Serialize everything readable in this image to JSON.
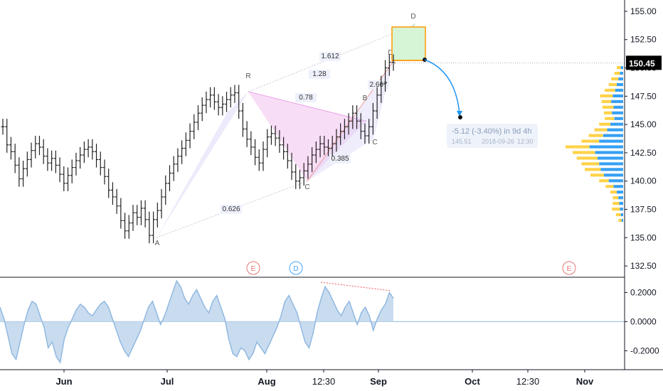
{
  "colors": {
    "up": "#26a69a",
    "bar": "#222222",
    "harmonic_fill": "#f3c6f0",
    "harmonic_line": "#e6a0e6",
    "xabcd_fill": "#dcd6f7",
    "projection_box": "#ff9800",
    "projection_fill": "#d6f5d6",
    "forecast_arrow": "#2196f3",
    "volume_buy": "#2196f3",
    "volume_sell": "#ffca28",
    "oscillator": "#90b8e0",
    "divergence": "#ef5350",
    "last_price_bg": "#000000"
  },
  "chart_data": [
    {
      "type": "ohlc",
      "x_ticks": [
        "Jun",
        "Jul",
        "Aug",
        "12:30",
        "Sep",
        "Oct",
        "12:30",
        "Nov"
      ],
      "y_ticks": [
        "155.00",
        "152.50",
        "150.00",
        "147.50",
        "145.00",
        "142.50",
        "140.00",
        "137.50",
        "135.00",
        "132.50"
      ],
      "ylim": [
        131.5,
        156
      ],
      "last_price": "150.45",
      "close_series": [
        144.8,
        143.2,
        142.6,
        141.4,
        140.2,
        141.1,
        141.9,
        142.7,
        143.3,
        143.0,
        142.2,
        141.6,
        142.0,
        141.4,
        140.6,
        139.8,
        140.5,
        141.2,
        141.8,
        142.3,
        142.8,
        143.0,
        142.6,
        141.9,
        141.2,
        140.4,
        139.2,
        138.6,
        137.8,
        136.5,
        135.6,
        136.3,
        137.2,
        136.8,
        137.6,
        136.6,
        135.2,
        136.6,
        137.4,
        138.6,
        139.8,
        140.7,
        141.5,
        142.2,
        142.9,
        143.6,
        144.4,
        145.2,
        146.0,
        146.7,
        147.2,
        147.6,
        147.0,
        146.5,
        146.8,
        147.2,
        147.6,
        147.8,
        146.2,
        144.6,
        143.7,
        143.0,
        142.1,
        141.6,
        142.8,
        143.9,
        144.2,
        143.8,
        143.2,
        142.6,
        141.8,
        140.8,
        140.0,
        140.3,
        140.9,
        141.5,
        142.3,
        142.8,
        143.3,
        143.0,
        142.9,
        143.3,
        143.9,
        144.4,
        144.8,
        145.3,
        146.0,
        145.3,
        144.4,
        144.0,
        144.8,
        146.2,
        147.6,
        148.6,
        150.0,
        150.5,
        150.45
      ],
      "volume_profile_levels": [
        {
          "price": 150.0,
          "buy": 3,
          "sell": 5
        },
        {
          "price": 149.5,
          "buy": 4,
          "sell": 7
        },
        {
          "price": 149.0,
          "buy": 6,
          "sell": 9
        },
        {
          "price": 148.5,
          "buy": 8,
          "sell": 10
        },
        {
          "price": 148.0,
          "buy": 10,
          "sell": 13
        },
        {
          "price": 147.5,
          "buy": 13,
          "sell": 16
        },
        {
          "price": 147.0,
          "buy": 15,
          "sell": 12
        },
        {
          "price": 146.5,
          "buy": 12,
          "sell": 14
        },
        {
          "price": 146.0,
          "buy": 14,
          "sell": 10
        },
        {
          "price": 145.5,
          "buy": 11,
          "sell": 12
        },
        {
          "price": 145.0,
          "buy": 16,
          "sell": 14
        },
        {
          "price": 144.5,
          "buy": 20,
          "sell": 16
        },
        {
          "price": 144.0,
          "buy": 25,
          "sell": 18
        },
        {
          "price": 143.5,
          "buy": 30,
          "sell": 22
        },
        {
          "price": 143.0,
          "buy": 42,
          "sell": 30
        },
        {
          "price": 142.5,
          "buy": 35,
          "sell": 28
        },
        {
          "price": 142.0,
          "buy": 32,
          "sell": 26
        },
        {
          "price": 141.5,
          "buy": 30,
          "sell": 22
        },
        {
          "price": 141.0,
          "buy": 28,
          "sell": 20
        },
        {
          "price": 140.5,
          "buy": 24,
          "sell": 17
        },
        {
          "price": 140.0,
          "buy": 18,
          "sell": 12
        },
        {
          "price": 139.5,
          "buy": 12,
          "sell": 10
        },
        {
          "price": 139.0,
          "buy": 8,
          "sell": 8
        },
        {
          "price": 138.5,
          "buy": 6,
          "sell": 7
        },
        {
          "price": 138.0,
          "buy": 5,
          "sell": 8
        },
        {
          "price": 137.5,
          "buy": 4,
          "sell": 10
        },
        {
          "price": 137.0,
          "buy": 3,
          "sell": 6
        },
        {
          "price": 136.5,
          "buy": 2,
          "sell": 4
        }
      ],
      "xabcd_pattern": {
        "points": {
          "X": "",
          "A": "A",
          "B": "B",
          "C": "C",
          "D": "D"
        },
        "ratios": [
          "1.612",
          "1.28",
          "0.78",
          "0.626",
          "0.385",
          "2.667"
        ]
      },
      "forecast": {
        "line1": "-5.12 (-3.40%) in 9d 4h",
        "line2": "145.51",
        "line3": "2018-09-26",
        "line4": "12:30"
      },
      "event_markers": [
        "E",
        "D",
        "E"
      ]
    },
    {
      "type": "area",
      "series": "oscillator",
      "y_ticks": [
        "0.2000",
        "0.0000",
        "-0.2000"
      ],
      "ylim": [
        -0.33,
        0.3
      ],
      "values": [
        0.1,
        0.02,
        -0.1,
        -0.22,
        -0.26,
        -0.14,
        -0.02,
        0.08,
        0.14,
        0.12,
        0.04,
        -0.04,
        -0.18,
        -0.14,
        -0.24,
        -0.28,
        -0.12,
        -0.04,
        0.02,
        0.08,
        0.12,
        0.1,
        0.06,
        0.04,
        0.08,
        0.12,
        0.14,
        0.1,
        0.02,
        -0.06,
        -0.14,
        -0.2,
        -0.24,
        -0.18,
        -0.12,
        -0.06,
        0.02,
        0.1,
        0.14,
        0.06,
        -0.02,
        0.04,
        0.12,
        0.2,
        0.28,
        0.24,
        0.16,
        0.12,
        0.18,
        0.22,
        0.16,
        0.1,
        0.06,
        0.14,
        0.18,
        0.1,
        0.02,
        -0.12,
        -0.22,
        -0.24,
        -0.18,
        -0.2,
        -0.26,
        -0.22,
        -0.14,
        -0.18,
        -0.22,
        -0.16,
        -0.1,
        -0.04,
        0.04,
        0.14,
        0.18,
        0.12,
        0.06,
        -0.04,
        -0.14,
        -0.18,
        -0.08,
        0.06,
        0.16,
        0.24,
        0.2,
        0.14,
        0.08,
        0.04,
        0.1,
        0.14,
        0.06,
        -0.02,
        0.06,
        0.1,
        0.04,
        -0.06,
        0.02,
        0.08,
        0.12,
        0.2,
        0.16
      ]
    }
  ]
}
